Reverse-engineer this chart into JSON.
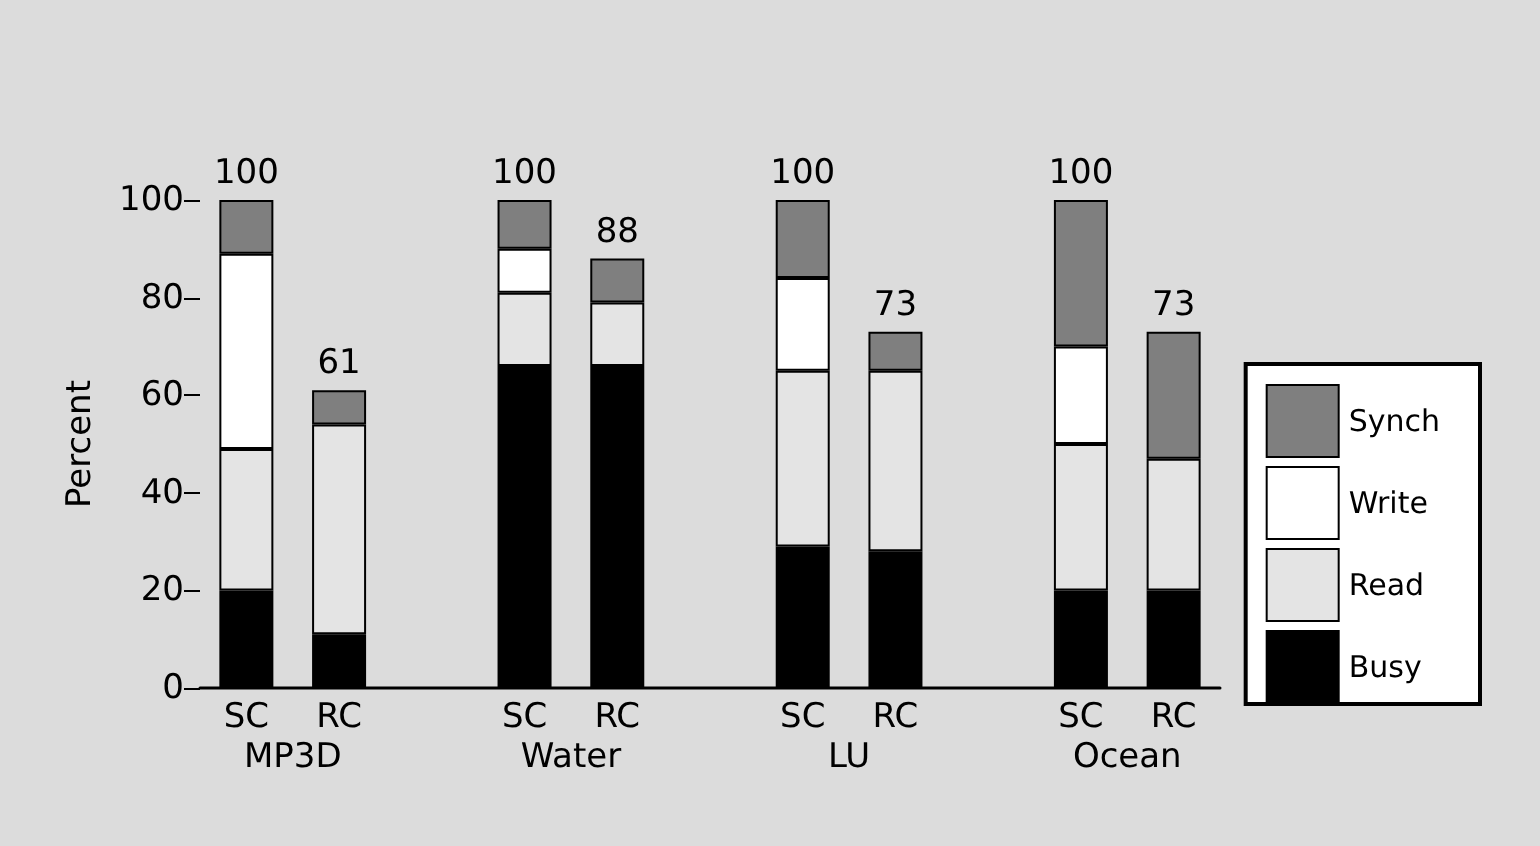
{
  "chart_data": {
    "type": "bar",
    "stacked": true,
    "ylabel": "Percent",
    "categories": [
      "SC",
      "RC",
      null,
      "SC",
      "RC",
      null,
      "SC",
      "RC",
      null,
      "SC",
      "RC"
    ],
    "series": [
      {
        "name": "Busy",
        "color": "#000000",
        "values": [
          20,
          11,
          null,
          66,
          66,
          null,
          29,
          28,
          null,
          20,
          20
        ]
      },
      {
        "name": "Read",
        "color": "#e4e4e4",
        "values": [
          29,
          43,
          null,
          15,
          13,
          null,
          36,
          37,
          null,
          30,
          27
        ]
      },
      {
        "name": "Write",
        "color": "#ffffff",
        "values": [
          40,
          null,
          null,
          9,
          null,
          null,
          19,
          null,
          null,
          20,
          null
        ]
      },
      {
        "name": "Synch",
        "color": "#7f7f7f",
        "values": [
          11,
          7,
          null,
          10,
          9,
          null,
          16,
          8,
          null,
          30,
          26
        ]
      }
    ],
    "totals": [
      "100",
      "61",
      null,
      "100",
      "88",
      null,
      "100",
      "73",
      null,
      "100",
      "73"
    ],
    "annotations": [
      "MP3D",
      "Water",
      "LU",
      "Ocean"
    ],
    "ylim": [
      0,
      100
    ],
    "yticks": [
      0,
      20,
      40,
      60,
      80,
      100
    ],
    "grid": false,
    "legend": "right"
  }
}
